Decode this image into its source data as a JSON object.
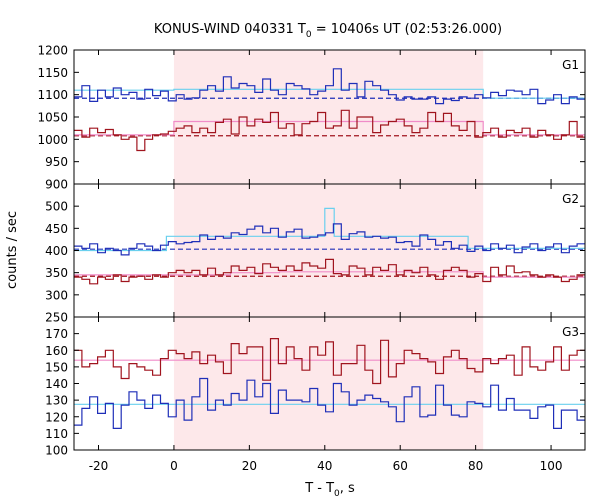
{
  "chart_data": {
    "type": "line",
    "title_main": "KONUS-WIND 040331 T",
    "title_sub": "0",
    "title_rest": " = 10406s UT (02:53:26.000)",
    "xlabel_main": "T - T",
    "xlabel_sub": "0",
    "xlabel_rest": ", s",
    "ylabel": "counts / sec",
    "xlim": [
      -26.5,
      109
    ],
    "xticks": [
      "-20",
      "0",
      "20",
      "40",
      "60",
      "80",
      "100"
    ],
    "xtick_values": [
      -20,
      0,
      20,
      40,
      60,
      80,
      100
    ],
    "shaded_interval": [
      0,
      82
    ],
    "grid": false,
    "colors": {
      "blue_series": "#1f2fb8",
      "red_series": "#a0141e",
      "blue_fit": "#6ad0ee",
      "red_fit": "#f08cc8",
      "shade": "#fde8ea"
    },
    "panels": [
      {
        "label": "G1",
        "ylim": [
          900,
          1200
        ],
        "yticks": [
          "900",
          "950",
          "1000",
          "1050",
          "1100",
          "1150",
          "1200"
        ],
        "ytick_values": [
          900,
          950,
          1000,
          1050,
          1100,
          1150,
          1200
        ],
        "series": [
          {
            "color_key": "blue_series",
            "values": [
              1095,
              1120,
              1085,
              1110,
              1095,
              1115,
              1100,
              1105,
              1090,
              1112,
              1098,
              1108,
              1086,
              1100,
              1090,
              1093,
              1110,
              1120,
              1108,
              1140,
              1115,
              1125,
              1120,
              1105,
              1135,
              1110,
              1100,
              1125,
              1120,
              1113,
              1100,
              1108,
              1120,
              1158,
              1110,
              1125,
              1095,
              1130,
              1120,
              1110,
              1100,
              1088,
              1095,
              1090,
              1090,
              1095,
              1080,
              1090,
              1087,
              1095,
              1092,
              1100,
              1093,
              1105,
              1098,
              1110,
              1108,
              1100,
              1112,
              1080,
              1088,
              1100,
              1080,
              1095,
              1090
            ]
          },
          {
            "color_key": "red_series",
            "values": [
              1020,
              1005,
              1025,
              1015,
              1022,
              1010,
              1000,
              1005,
              975,
              1000,
              1010,
              1012,
              1018,
              1025,
              1030,
              1015,
              1025,
              1015,
              1038,
              1045,
              1012,
              1050,
              1030,
              1045,
              1038,
              1060,
              1025,
              1035,
              1010,
              1035,
              1040,
              1060,
              1025,
              1030,
              1065,
              1025,
              1050,
              1050,
              1015,
              1032,
              1040,
              1045,
              1030,
              1015,
              1025,
              1060,
              1040,
              1058,
              1030,
              1020,
              1040,
              1005,
              1015,
              1025,
              1005,
              1020,
              1015,
              1025,
              1005,
              1020,
              1010,
              1000,
              1010,
              1040,
              1005
            ]
          }
        ],
        "fits": [
          {
            "color_key": "blue_fit",
            "segments": [
              [
                -26.5,
                0,
                1110
              ],
              [
                0,
                82,
                1112
              ],
              [
                82,
                109,
                1092
              ]
            ]
          },
          {
            "color_key": "red_fit",
            "segments": [
              [
                -26.5,
                0,
                1010
              ],
              [
                0,
                82,
                1040
              ],
              [
                82,
                109,
                1010
              ]
            ]
          }
        ],
        "levels": [
          {
            "color_key": "blue_series",
            "value": 1092
          },
          {
            "color_key": "red_series",
            "value": 1008
          }
        ]
      },
      {
        "label": "G2",
        "ylim": [
          250,
          550
        ],
        "yticks": [
          "250",
          "300",
          "350",
          "400",
          "450",
          "500"
        ],
        "ytick_values": [
          250,
          300,
          350,
          400,
          450,
          500
        ],
        "series": [
          {
            "color_key": "blue_series",
            "values": [
              410,
              405,
              415,
              395,
              405,
              400,
              390,
              405,
              415,
              410,
              400,
              412,
              420,
              415,
              418,
              420,
              435,
              425,
              432,
              428,
              440,
              436,
              448,
              455,
              440,
              450,
              430,
              442,
              448,
              428,
              430,
              435,
              440,
              460,
              425,
              438,
              442,
              430,
              432,
              428,
              430,
              418,
              420,
              410,
              435,
              425,
              412,
              420,
              405,
              412,
              398,
              410,
              400,
              415,
              405,
              412,
              395,
              408,
              415,
              400,
              408,
              415,
              395,
              410,
              415
            ]
          },
          {
            "color_key": "red_series",
            "values": [
              340,
              335,
              325,
              340,
              335,
              345,
              330,
              340,
              342,
              335,
              345,
              340,
              350,
              355,
              350,
              355,
              345,
              360,
              345,
              350,
              365,
              355,
              362,
              348,
              370,
              362,
              355,
              365,
              355,
              372,
              365,
              360,
              380,
              348,
              345,
              365,
              360,
              345,
              362,
              355,
              368,
              345,
              355,
              350,
              362,
              345,
              335,
              355,
              362,
              355,
              340,
              348,
              330,
              362,
              345,
              365,
              350,
              352,
              345,
              340,
              345,
              340,
              330,
              335,
              345
            ]
          }
        ],
        "fits": [
          {
            "color_key": "blue_fit",
            "segments": [
              [
                -26.5,
                -2,
                400
              ],
              [
                -2,
                35.5,
                432
              ],
              [
                35.5,
                40,
                432
              ],
              [
                40,
                42.5,
                495
              ],
              [
                42.5,
                78,
                432
              ],
              [
                78,
                109,
                405
              ]
            ]
          },
          {
            "color_key": "red_fit",
            "segments": [
              [
                -26.5,
                15,
                345
              ],
              [
                15,
                28,
                350
              ],
              [
                28,
                82,
                352
              ],
              [
                82,
                109,
                340
              ]
            ]
          }
        ],
        "levels": [
          {
            "color_key": "blue_series",
            "value": 403
          },
          {
            "color_key": "red_series",
            "value": 342
          }
        ]
      },
      {
        "label": "G3",
        "ylim": [
          100,
          180
        ],
        "yticks": [
          "100",
          "110",
          "120",
          "130",
          "140",
          "150",
          "160",
          "170"
        ],
        "ytick_values": [
          100,
          110,
          120,
          130,
          140,
          150,
          160,
          170
        ],
        "series": [
          {
            "color_key": "blue_series",
            "values": [
              115,
              125,
              132,
              122,
              128,
              113,
              127,
              135,
              130,
              125,
              133,
              128,
              120,
              130,
              118,
              132,
              143,
              124,
              130,
              127,
              134,
              130,
              142,
              132,
              140,
              122,
              136,
              130,
              130,
              129,
              137,
              127,
              123,
              140,
              135,
              127,
              130,
              133,
              131,
              129,
              126,
              117,
              132,
              138,
              120,
              121,
              139,
              127,
              121,
              120,
              129,
              128,
              126,
              139,
              124,
              131,
              124,
              124,
              119,
              126,
              127,
              113,
              124,
              124,
              118
            ]
          },
          {
            "color_key": "red_series",
            "values": [
              160,
              150,
              152,
              156,
              160,
              150,
              143,
              152,
              150,
              148,
              145,
              155,
              160,
              158,
              155,
              159,
              152,
              157,
              153,
              146,
              164,
              158,
              162,
              162,
              142,
              167,
              152,
              162,
              155,
              148,
              162,
              157,
              165,
              145,
              152,
              152,
              163,
              148,
              140,
              166,
              144,
              152,
              160,
              158,
              155,
              153,
              146,
              156,
              160,
              155,
              149,
              147,
              155,
              152,
              155,
              157,
              145,
              162,
              150,
              148,
              153,
              162,
              148,
              157,
              160
            ]
          }
        ],
        "fits": [
          {
            "color_key": "blue_fit",
            "segments": [
              [
                -26.5,
                109,
                127.5
              ]
            ]
          },
          {
            "color_key": "red_fit",
            "segments": [
              [
                -26.5,
                109,
                154
              ]
            ]
          }
        ],
        "levels": []
      }
    ]
  }
}
